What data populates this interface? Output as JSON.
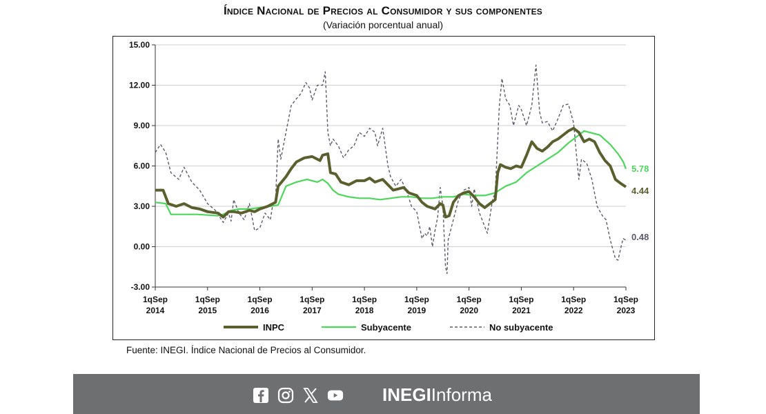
{
  "page": {
    "title": "Índice Nacional de Precios al Consumidor y sus componentes",
    "subtitle": "(Variación porcentual anual)",
    "source": "Fuente: INEGI. Índice Nacional de Precios al Consumidor.",
    "brand_bold": "INEGI",
    "brand_regular": "Informa"
  },
  "social_icons": [
    "facebook-icon",
    "instagram-icon",
    "x-icon",
    "youtube-icon"
  ],
  "chart_data": {
    "type": "line",
    "title": "Índice Nacional de Precios al Consumidor y sus componentes",
    "subtitle": "(Variación porcentual anual)",
    "ylim": [
      -3,
      15
    ],
    "yticks": [
      "15.00",
      "12.00",
      "9.00",
      "6.00",
      "3.00",
      "0.00",
      "-3.00"
    ],
    "ytick_values": [
      15,
      12,
      9,
      6,
      3,
      0,
      -3
    ],
    "xlim": [
      2014.0,
      2023.0
    ],
    "xticks": [
      {
        "line1": "1qSep",
        "line2": "2014",
        "x": 2014.0
      },
      {
        "line1": "1qSep",
        "line2": "2015",
        "x": 2015.0
      },
      {
        "line1": "1qSep",
        "line2": "2016",
        "x": 2016.0
      },
      {
        "line1": "1qSep",
        "line2": "2017",
        "x": 2017.0
      },
      {
        "line1": "1qSep",
        "line2": "2018",
        "x": 2018.0
      },
      {
        "line1": "1qSep",
        "line2": "2019",
        "x": 2019.0
      },
      {
        "line1": "1qSep",
        "line2": "2020",
        "x": 2020.0
      },
      {
        "line1": "1qSep",
        "line2": "2021",
        "x": 2021.0
      },
      {
        "line1": "1qSep",
        "line2": "2022",
        "x": 2022.0
      },
      {
        "line1": "1qSep",
        "line2": "2023",
        "x": 2023.0
      }
    ],
    "grid": true,
    "legend_position": "bottom",
    "series": [
      {
        "name": "No subyacente",
        "color": "#5a5a6a",
        "style": "dashed",
        "end_label": "0.48",
        "points": [
          [
            2014.0,
            7.0
          ],
          [
            2014.1,
            7.6
          ],
          [
            2014.2,
            7.0
          ],
          [
            2014.3,
            5.5
          ],
          [
            2014.45,
            5.0
          ],
          [
            2014.55,
            5.9
          ],
          [
            2014.7,
            4.8
          ],
          [
            2014.85,
            4.2
          ],
          [
            2015.0,
            3.2
          ],
          [
            2015.15,
            2.7
          ],
          [
            2015.3,
            1.8
          ],
          [
            2015.4,
            2.5
          ],
          [
            2015.45,
            1.9
          ],
          [
            2015.5,
            3.5
          ],
          [
            2015.6,
            2.5
          ],
          [
            2015.7,
            2.0
          ],
          [
            2015.8,
            3.2
          ],
          [
            2015.9,
            1.2
          ],
          [
            2016.0,
            1.4
          ],
          [
            2016.1,
            2.5
          ],
          [
            2016.2,
            2.0
          ],
          [
            2016.25,
            3.2
          ],
          [
            2016.3,
            3.5
          ],
          [
            2016.35,
            8.0
          ],
          [
            2016.4,
            6.5
          ],
          [
            2016.5,
            8.5
          ],
          [
            2016.6,
            10.5
          ],
          [
            2016.7,
            11.0
          ],
          [
            2016.75,
            11.2
          ],
          [
            2016.8,
            11.5
          ],
          [
            2016.88,
            12.2
          ],
          [
            2016.95,
            11.8
          ],
          [
            2017.0,
            10.9
          ],
          [
            2017.1,
            12.0
          ],
          [
            2017.2,
            12.0
          ],
          [
            2017.25,
            13.0
          ],
          [
            2017.3,
            8.5
          ],
          [
            2017.35,
            7.5
          ],
          [
            2017.4,
            8.0
          ],
          [
            2017.5,
            7.5
          ],
          [
            2017.6,
            6.6
          ],
          [
            2017.7,
            7.2
          ],
          [
            2017.8,
            7.5
          ],
          [
            2017.9,
            8.5
          ],
          [
            2018.0,
            8.2
          ],
          [
            2018.1,
            8.8
          ],
          [
            2018.2,
            8.5
          ],
          [
            2018.25,
            7.5
          ],
          [
            2018.35,
            8.8
          ],
          [
            2018.45,
            6.0
          ],
          [
            2018.5,
            5.2
          ],
          [
            2018.6,
            4.5
          ],
          [
            2018.7,
            5.0
          ],
          [
            2018.8,
            4.2
          ],
          [
            2018.9,
            3.0
          ],
          [
            2019.0,
            2.6
          ],
          [
            2019.1,
            0.6
          ],
          [
            2019.15,
            1.0
          ],
          [
            2019.2,
            0.8
          ],
          [
            2019.25,
            1.5
          ],
          [
            2019.3,
            0.0
          ],
          [
            2019.35,
            1.2
          ],
          [
            2019.4,
            2.2
          ],
          [
            2019.45,
            4.4
          ],
          [
            2019.5,
            3.0
          ],
          [
            2019.55,
            -1.5
          ],
          [
            2019.58,
            -2.0
          ],
          [
            2019.6,
            0.5
          ],
          [
            2019.7,
            2.0
          ],
          [
            2019.8,
            3.5
          ],
          [
            2019.9,
            4.2
          ],
          [
            2020.0,
            4.4
          ],
          [
            2020.05,
            3.0
          ],
          [
            2020.1,
            4.3
          ],
          [
            2020.2,
            2.5
          ],
          [
            2020.3,
            1.5
          ],
          [
            2020.35,
            1.0
          ],
          [
            2020.45,
            3.5
          ],
          [
            2020.5,
            4.0
          ],
          [
            2020.58,
            10.5
          ],
          [
            2020.63,
            12.5
          ],
          [
            2020.7,
            11.0
          ],
          [
            2020.78,
            10.5
          ],
          [
            2020.85,
            9.0
          ],
          [
            2020.95,
            10.5
          ],
          [
            2021.0,
            10.2
          ],
          [
            2021.1,
            9.0
          ],
          [
            2021.2,
            10.5
          ],
          [
            2021.28,
            13.5
          ],
          [
            2021.35,
            10.0
          ],
          [
            2021.4,
            9.2
          ],
          [
            2021.5,
            9.3
          ],
          [
            2021.6,
            8.6
          ],
          [
            2021.7,
            9.5
          ],
          [
            2021.8,
            10.5
          ],
          [
            2021.9,
            10.6
          ],
          [
            2022.0,
            9.2
          ],
          [
            2022.05,
            7.0
          ],
          [
            2022.1,
            5.0
          ],
          [
            2022.15,
            6.5
          ],
          [
            2022.25,
            6.2
          ],
          [
            2022.35,
            5.0
          ],
          [
            2022.45,
            3.0
          ],
          [
            2022.55,
            2.3
          ],
          [
            2022.62,
            2.0
          ],
          [
            2022.7,
            0.5
          ],
          [
            2022.8,
            -0.9
          ],
          [
            2022.85,
            -1.0
          ],
          [
            2022.92,
            0.2
          ],
          [
            2022.95,
            0.6
          ],
          [
            2023.0,
            0.48
          ]
        ]
      },
      {
        "name": "Subyacente",
        "color": "#4cd65a",
        "style": "solid",
        "end_label": "5.78",
        "points": [
          [
            2014.0,
            3.3
          ],
          [
            2014.2,
            3.2
          ],
          [
            2014.3,
            2.4
          ],
          [
            2014.5,
            2.4
          ],
          [
            2014.8,
            2.4
          ],
          [
            2015.0,
            2.35
          ],
          [
            2015.2,
            2.3
          ],
          [
            2015.3,
            2.4
          ],
          [
            2015.45,
            2.7
          ],
          [
            2015.6,
            2.8
          ],
          [
            2015.8,
            2.8
          ],
          [
            2016.0,
            2.9
          ],
          [
            2016.2,
            3.0
          ],
          [
            2016.35,
            3.1
          ],
          [
            2016.5,
            4.5
          ],
          [
            2016.7,
            4.8
          ],
          [
            2016.9,
            5.0
          ],
          [
            2017.0,
            4.9
          ],
          [
            2017.1,
            4.8
          ],
          [
            2017.2,
            5.0
          ],
          [
            2017.3,
            4.7
          ],
          [
            2017.4,
            4.2
          ],
          [
            2017.5,
            3.9
          ],
          [
            2017.7,
            3.7
          ],
          [
            2017.9,
            3.6
          ],
          [
            2018.1,
            3.6
          ],
          [
            2018.3,
            3.5
          ],
          [
            2018.5,
            3.6
          ],
          [
            2018.7,
            3.7
          ],
          [
            2018.9,
            3.7
          ],
          [
            2019.1,
            3.6
          ],
          [
            2019.3,
            3.6
          ],
          [
            2019.5,
            3.7
          ],
          [
            2019.7,
            3.7
          ],
          [
            2019.9,
            3.9
          ],
          [
            2020.1,
            3.8
          ],
          [
            2020.3,
            3.8
          ],
          [
            2020.5,
            4.0
          ],
          [
            2020.7,
            4.5
          ],
          [
            2020.9,
            4.8
          ],
          [
            2021.1,
            5.5
          ],
          [
            2021.3,
            6.0
          ],
          [
            2021.5,
            6.5
          ],
          [
            2021.7,
            7.0
          ],
          [
            2021.9,
            7.7
          ],
          [
            2022.1,
            8.3
          ],
          [
            2022.2,
            8.6
          ],
          [
            2022.3,
            8.5
          ],
          [
            2022.5,
            8.3
          ],
          [
            2022.7,
            7.6
          ],
          [
            2022.85,
            6.9
          ],
          [
            2022.95,
            6.3
          ],
          [
            2023.0,
            5.78
          ]
        ]
      },
      {
        "name": "INPC",
        "color": "#5b5f2e",
        "style": "solid",
        "end_label": "4.44",
        "points": [
          [
            2014.0,
            4.2
          ],
          [
            2014.15,
            4.2
          ],
          [
            2014.25,
            3.2
          ],
          [
            2014.4,
            3.0
          ],
          [
            2014.55,
            3.2
          ],
          [
            2014.7,
            2.9
          ],
          [
            2014.85,
            2.8
          ],
          [
            2015.0,
            2.6
          ],
          [
            2015.2,
            2.5
          ],
          [
            2015.3,
            2.2
          ],
          [
            2015.4,
            2.6
          ],
          [
            2015.5,
            2.6
          ],
          [
            2015.65,
            2.5
          ],
          [
            2015.8,
            2.7
          ],
          [
            2015.9,
            2.6
          ],
          [
            2016.0,
            2.8
          ],
          [
            2016.15,
            3.0
          ],
          [
            2016.3,
            3.3
          ],
          [
            2016.35,
            4.5
          ],
          [
            2016.5,
            5.2
          ],
          [
            2016.6,
            5.8
          ],
          [
            2016.7,
            6.3
          ],
          [
            2016.85,
            6.6
          ],
          [
            2017.0,
            6.7
          ],
          [
            2017.15,
            6.4
          ],
          [
            2017.2,
            6.8
          ],
          [
            2017.3,
            6.9
          ],
          [
            2017.35,
            5.5
          ],
          [
            2017.45,
            5.4
          ],
          [
            2017.55,
            4.8
          ],
          [
            2017.7,
            4.6
          ],
          [
            2017.85,
            4.9
          ],
          [
            2018.0,
            4.9
          ],
          [
            2018.1,
            5.1
          ],
          [
            2018.2,
            4.8
          ],
          [
            2018.35,
            5.0
          ],
          [
            2018.45,
            4.6
          ],
          [
            2018.55,
            4.2
          ],
          [
            2018.65,
            4.3
          ],
          [
            2018.75,
            4.4
          ],
          [
            2018.85,
            4.0
          ],
          [
            2019.0,
            3.8
          ],
          [
            2019.1,
            3.3
          ],
          [
            2019.2,
            3.0
          ],
          [
            2019.35,
            2.8
          ],
          [
            2019.45,
            3.2
          ],
          [
            2019.5,
            3.1
          ],
          [
            2019.55,
            2.2
          ],
          [
            2019.62,
            2.3
          ],
          [
            2019.7,
            3.3
          ],
          [
            2019.8,
            3.8
          ],
          [
            2019.9,
            4.0
          ],
          [
            2020.0,
            4.1
          ],
          [
            2020.1,
            3.7
          ],
          [
            2020.2,
            3.2
          ],
          [
            2020.3,
            2.9
          ],
          [
            2020.4,
            3.2
          ],
          [
            2020.5,
            3.5
          ],
          [
            2020.55,
            5.5
          ],
          [
            2020.6,
            6.1
          ],
          [
            2020.7,
            5.9
          ],
          [
            2020.8,
            5.8
          ],
          [
            2020.9,
            6.0
          ],
          [
            2021.0,
            5.9
          ],
          [
            2021.1,
            6.8
          ],
          [
            2021.2,
            7.8
          ],
          [
            2021.3,
            7.3
          ],
          [
            2021.4,
            7.1
          ],
          [
            2021.5,
            7.4
          ],
          [
            2021.6,
            7.8
          ],
          [
            2021.7,
            8.0
          ],
          [
            2021.8,
            8.3
          ],
          [
            2021.9,
            8.6
          ],
          [
            2022.0,
            8.8
          ],
          [
            2022.1,
            8.5
          ],
          [
            2022.2,
            7.8
          ],
          [
            2022.3,
            8.0
          ],
          [
            2022.4,
            7.8
          ],
          [
            2022.5,
            7.0
          ],
          [
            2022.6,
            6.4
          ],
          [
            2022.7,
            6.0
          ],
          [
            2022.8,
            5.0
          ],
          [
            2022.9,
            4.7
          ],
          [
            2023.0,
            4.44
          ]
        ]
      }
    ]
  }
}
